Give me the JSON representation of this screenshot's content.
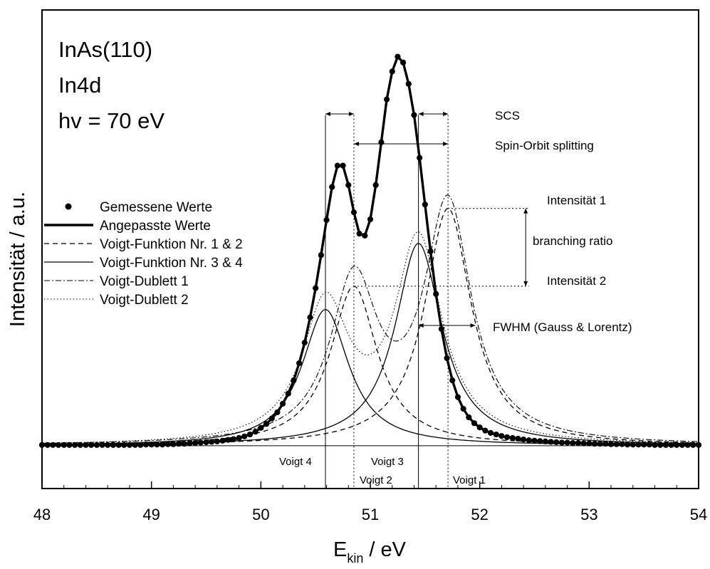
{
  "chart_data": {
    "type": "line",
    "xlabel_main": "E",
    "xlabel_sub": "kin",
    "xlabel_unit": " / eV",
    "ylabel": "Intensität / a.u.",
    "xlim": [
      48,
      54
    ],
    "xticks": [
      48,
      49,
      50,
      51,
      52,
      53,
      54
    ],
    "xtick_labels": [
      "48",
      "49",
      "50",
      "51",
      "52",
      "53",
      "54"
    ],
    "ylim": [
      -0.11,
      1.12
    ],
    "baseline": 0,
    "sample_lines": [
      "InAs(110)",
      "In4d",
      "hv = 70 eV"
    ],
    "legend": {
      "placement": "left",
      "entries": [
        {
          "label": "Gemessene Werte",
          "style": "dots"
        },
        {
          "label": "Angepasste Werte",
          "style": "thick"
        },
        {
          "label": "Voigt-Funktion Nr. 1 & 2",
          "style": "dashed"
        },
        {
          "label": "Voigt-Funktion Nr. 3 & 4",
          "style": "solid"
        },
        {
          "label": "Voigt-Dublett 1",
          "style": "dashdot"
        },
        {
          "label": "Voigt-Dublett 2",
          "style": "dotted"
        }
      ]
    },
    "peaks": [
      {
        "name": "Voigt 1",
        "center": 51.71,
        "height": 0.61,
        "width": 0.26
      },
      {
        "name": "Voigt 2",
        "center": 50.85,
        "height": 0.41,
        "width": 0.26
      },
      {
        "name": "Voigt 3",
        "center": 51.44,
        "height": 0.52,
        "width": 0.26
      },
      {
        "name": "Voigt 4",
        "center": 50.59,
        "height": 0.35,
        "width": 0.26
      }
    ],
    "measured": {
      "x_start": 48.0,
      "x_step": 0.05,
      "y": [
        0.002,
        0.002,
        0.002,
        0.002,
        0.002,
        0.002,
        0.002,
        0.002,
        0.002,
        0.002,
        0.002,
        0.002,
        0.002,
        0.002,
        0.002,
        0.002,
        0.002,
        0.002,
        0.002,
        0.003,
        0.003,
        0.003,
        0.003,
        0.004,
        0.004,
        0.005,
        0.005,
        0.006,
        0.007,
        0.008,
        0.009,
        0.01,
        0.011,
        0.013,
        0.015,
        0.017,
        0.02,
        0.024,
        0.029,
        0.036,
        0.046,
        0.056,
        0.07,
        0.086,
        0.108,
        0.134,
        0.168,
        0.212,
        0.265,
        0.33,
        0.405,
        0.49,
        0.58,
        0.665,
        0.72,
        0.72,
        0.67,
        0.6,
        0.545,
        0.54,
        0.582,
        0.67,
        0.78,
        0.89,
        0.962,
        1.0,
        0.985,
        0.93,
        0.85,
        0.74,
        0.62,
        0.5,
        0.39,
        0.3,
        0.225,
        0.168,
        0.125,
        0.095,
        0.073,
        0.058,
        0.047,
        0.039,
        0.033,
        0.029,
        0.025,
        0.022,
        0.02,
        0.018,
        0.016,
        0.014,
        0.013,
        0.012,
        0.011,
        0.01,
        0.009,
        0.008,
        0.008,
        0.007,
        0.007,
        0.006,
        0.006,
        0.005,
        0.005,
        0.005,
        0.004,
        0.004,
        0.004,
        0.003,
        0.003,
        0.003,
        0.003,
        0.003,
        0.002,
        0.002,
        0.002,
        0.002,
        0.002,
        0.002,
        0.002,
        0.002,
        0.002
      ]
    },
    "annotations": {
      "scs": "SCS",
      "spin_orbit": "Spin-Orbit splitting",
      "intensity1": "Intensität 1",
      "intensity2": "Intensität 2",
      "branching_ratio": "branching ratio",
      "fwhm": "FWHM (Gauss & Lorentz)",
      "voigt1": "Voigt 1",
      "voigt2": "Voigt 2",
      "voigt3": "Voigt 3",
      "voigt4": "Voigt 4"
    }
  }
}
